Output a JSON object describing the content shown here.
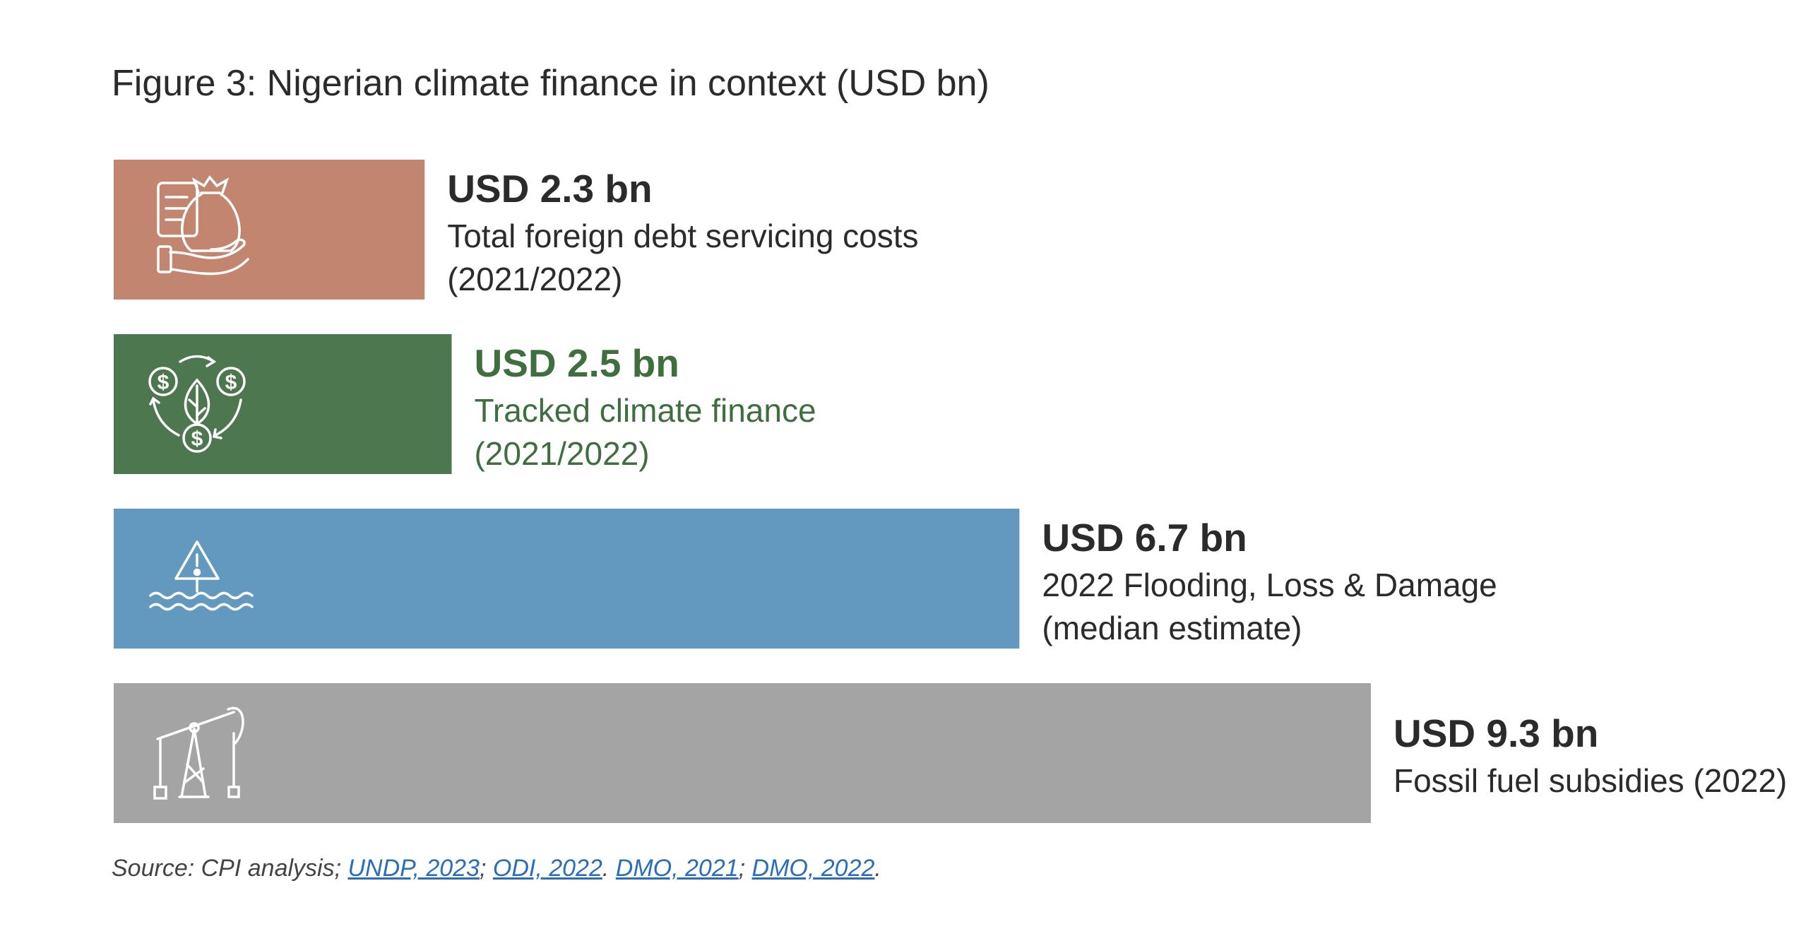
{
  "title": "Figure 3: Nigerian climate finance in context (USD bn)",
  "chart_data": {
    "type": "bar",
    "orientation": "horizontal",
    "title": "Figure 3: Nigerian climate finance in context (USD bn)",
    "xlim": [
      0,
      9.3
    ],
    "grid": false,
    "bars": [
      {
        "value": 2.3,
        "value_label": "USD 2.3 bn",
        "label_lines": [
          "Total foreign debt servicing costs",
          "(2021/2022)"
        ],
        "color": "#c28670",
        "text_color": "#2b2b2b",
        "icon": "money-bag-in-hand-icon"
      },
      {
        "value": 2.5,
        "value_label": "USD 2.5 bn",
        "label_lines": [
          "Tracked climate finance",
          "(2021/2022)"
        ],
        "color": "#4d774e",
        "text_color": "#3f6f3e",
        "icon": "climate-finance-cycle-icon"
      },
      {
        "value": 6.7,
        "value_label": "USD 6.7 bn",
        "label_lines": [
          "2022 Flooding, Loss & Damage",
          "(median estimate)"
        ],
        "color": "#6499bf",
        "text_color": "#2b2b2b",
        "icon": "flood-warning-icon"
      },
      {
        "value": 9.3,
        "value_label": "USD 9.3 bn",
        "label_lines": [
          "Fossil fuel subsidies (2022)"
        ],
        "color": "#a4a4a4",
        "text_color": "#2b2b2b",
        "icon": "oil-pump-jack-icon"
      }
    ]
  },
  "source": {
    "prefix": "Source: CPI analysis; ",
    "links": [
      "UNDP, 2023",
      "ODI, 2022",
      "DMO, 2021",
      "DMO, 2022"
    ],
    "separators": [
      "; ",
      ". ",
      "; ",
      "."
    ]
  }
}
